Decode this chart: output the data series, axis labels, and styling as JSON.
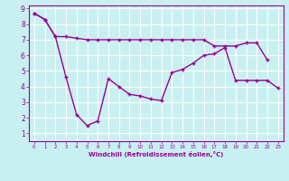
{
  "xlabel": "Windchill (Refroidissement éolien,°C)",
  "background_color": "#c8f0f0",
  "grid_color": "#ffffff",
  "line_color": "#990099",
  "xlim": [
    -0.5,
    23.5
  ],
  "ylim": [
    0.5,
    9.2
  ],
  "xticks": [
    0,
    1,
    2,
    3,
    4,
    5,
    6,
    7,
    8,
    9,
    10,
    11,
    12,
    13,
    14,
    15,
    16,
    17,
    18,
    19,
    20,
    21,
    22,
    23
  ],
  "yticks": [
    1,
    2,
    3,
    4,
    5,
    6,
    7,
    8,
    9
  ],
  "line1_x": [
    0,
    1,
    2,
    3,
    4,
    5,
    6,
    7,
    8,
    9,
    10,
    11,
    12,
    13,
    14,
    15,
    16,
    17,
    18,
    19,
    20,
    21,
    22
  ],
  "line1_y": [
    8.7,
    8.3,
    7.2,
    7.2,
    7.1,
    7.0,
    7.0,
    7.0,
    7.0,
    7.0,
    7.0,
    7.0,
    7.0,
    7.0,
    7.0,
    7.0,
    7.0,
    6.6,
    6.6,
    6.6,
    6.8,
    6.8,
    5.7
  ],
  "line2_x": [
    0,
    1,
    2,
    3,
    4,
    5,
    6,
    7,
    8,
    9,
    10,
    11,
    12,
    13,
    14,
    15,
    16,
    17,
    18,
    19,
    20,
    21,
    22,
    23
  ],
  "line2_y": [
    8.7,
    8.3,
    7.2,
    4.6,
    2.2,
    1.5,
    1.8,
    4.5,
    4.0,
    3.5,
    3.4,
    3.2,
    3.1,
    4.9,
    5.1,
    5.5,
    6.0,
    6.1,
    6.5,
    4.4,
    4.4,
    4.4,
    4.4,
    3.9
  ]
}
